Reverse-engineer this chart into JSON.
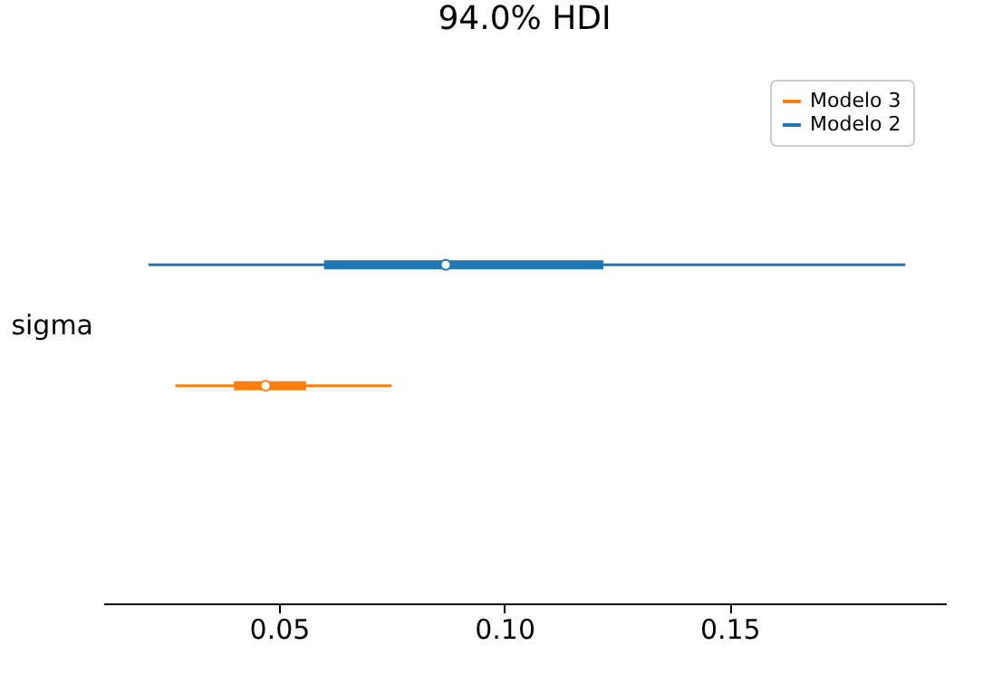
{
  "chart_data": {
    "type": "box",
    "title": "94.0% HDI",
    "orientation": "horizontal",
    "categories": [
      "sigma"
    ],
    "series": [
      {
        "name": "Modelo 3",
        "color": "#ff7f0e",
        "boxes": [
          {
            "low": 0.027,
            "q1": 0.04,
            "median": 0.047,
            "q3": 0.056,
            "high": 0.075
          }
        ]
      },
      {
        "name": "Modelo 2",
        "color": "#1f77b4",
        "boxes": [
          {
            "low": 0.021,
            "q1": 0.06,
            "median": 0.087,
            "q3": 0.122,
            "high": 0.189
          }
        ]
      }
    ],
    "xlim": [
      0.011,
      0.198
    ],
    "xticks": [
      {
        "value": 0.05,
        "label": "0.05"
      },
      {
        "value": 0.1,
        "label": "0.10"
      },
      {
        "value": 0.15,
        "label": "0.15"
      }
    ],
    "legend": "top right",
    "marker": "circle",
    "grid": false
  }
}
